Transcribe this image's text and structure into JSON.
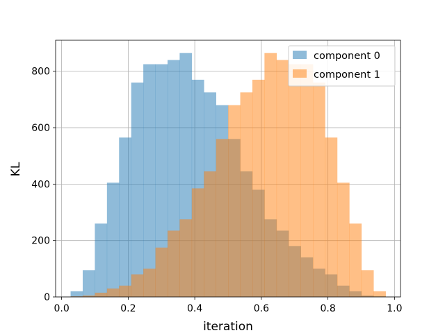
{
  "chart_data": {
    "type": "bar",
    "title": "",
    "xlabel": "iteration",
    "ylabel": "KL",
    "xlim": [
      -0.018,
      1.018
    ],
    "ylim": [
      0,
      910
    ],
    "xticks": [
      "0.0",
      "0.2",
      "0.4",
      "0.6",
      "0.8",
      "1.0"
    ],
    "yticks": [
      "0",
      "200",
      "400",
      "600",
      "800"
    ],
    "grid": true,
    "legend_position": "upper right",
    "bin_width": 0.0364,
    "series": [
      {
        "name": "component 0",
        "color": "#1f77b4",
        "alpha": 0.5,
        "bin_start": 0.027,
        "values": [
          20,
          95,
          260,
          405,
          565,
          760,
          825,
          825,
          840,
          865,
          770,
          725,
          680,
          560,
          445,
          380,
          275,
          235,
          180,
          140,
          100,
          80,
          40,
          20,
          5,
          2
        ]
      },
      {
        "name": "component 1",
        "color": "#ff7f0e",
        "alpha": 0.5,
        "bin_start": 0.027,
        "values": [
          2,
          5,
          15,
          30,
          40,
          80,
          100,
          175,
          235,
          275,
          385,
          445,
          560,
          680,
          725,
          770,
          865,
          840,
          825,
          825,
          760,
          565,
          405,
          260,
          95,
          20
        ]
      }
    ]
  }
}
